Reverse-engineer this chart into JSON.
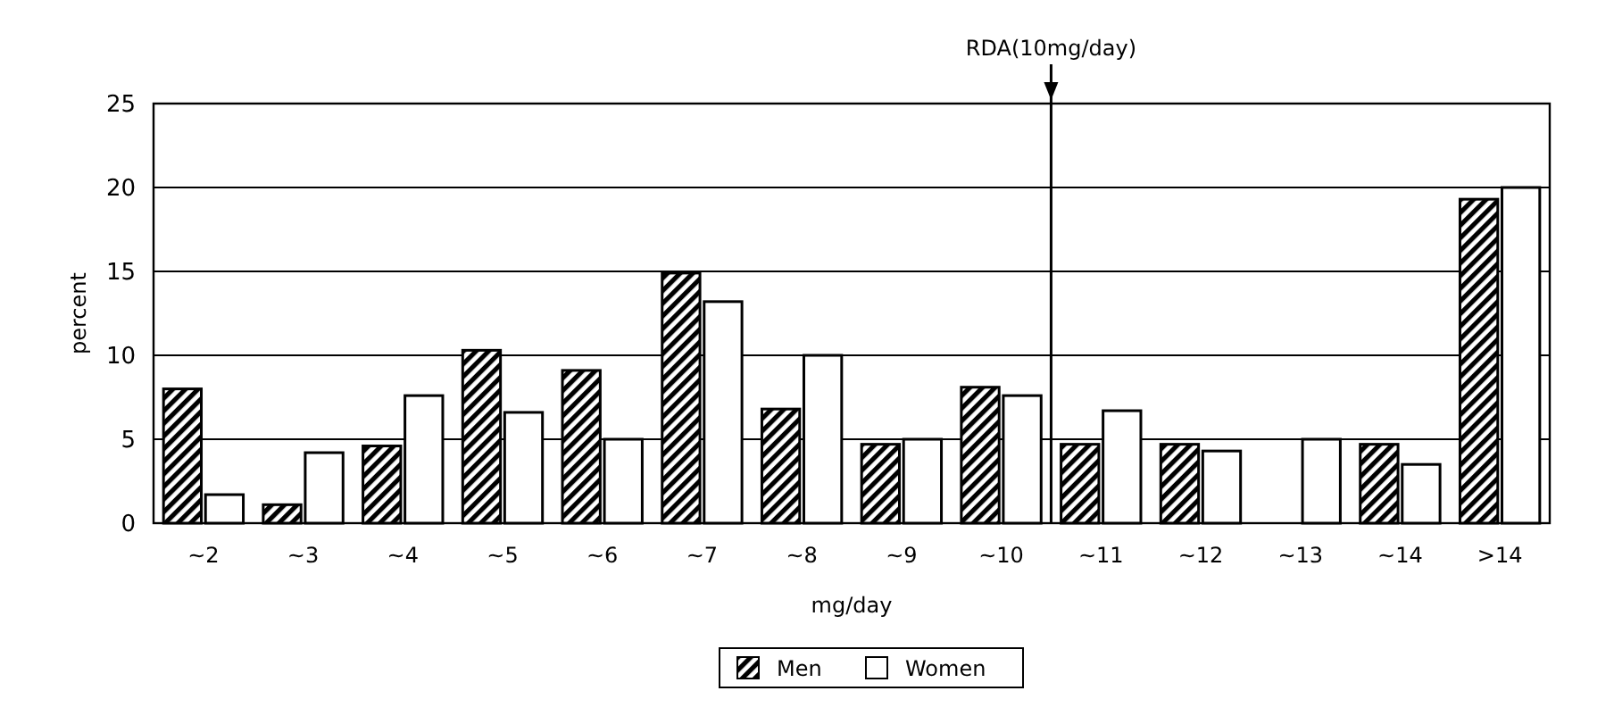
{
  "chart_data": {
    "type": "bar",
    "xlabel": "mg/day",
    "ylabel": "percent",
    "categories": [
      "~2",
      "~3",
      "~4",
      "~5",
      "~6",
      "~7",
      "~8",
      "~9",
      "~10",
      "~11",
      "~12",
      "~13",
      "~14",
      ">14"
    ],
    "series": [
      {
        "name": "Men",
        "color": "#000000",
        "values": [
          8,
          1.1,
          4.6,
          10.3,
          9.1,
          14.9,
          6.8,
          4.7,
          8.1,
          4.7,
          4.7,
          0,
          4.7,
          19.3
        ]
      },
      {
        "name": "Women",
        "color": "#ffffff",
        "values": [
          1.7,
          4.2,
          7.6,
          6.6,
          5,
          13.2,
          10,
          5,
          7.6,
          6.7,
          4.3,
          5,
          3.5,
          20
        ]
      }
    ],
    "ylim": [
      0,
      25
    ],
    "yticks": [
      0,
      5,
      10,
      15,
      20,
      25
    ],
    "grid": "y",
    "legend": "bottom",
    "ref_lines": [
      {
        "axis": "x",
        "value": "~11",
        "label": "RDA(10mg/day)",
        "color": "#000000"
      }
    ]
  }
}
